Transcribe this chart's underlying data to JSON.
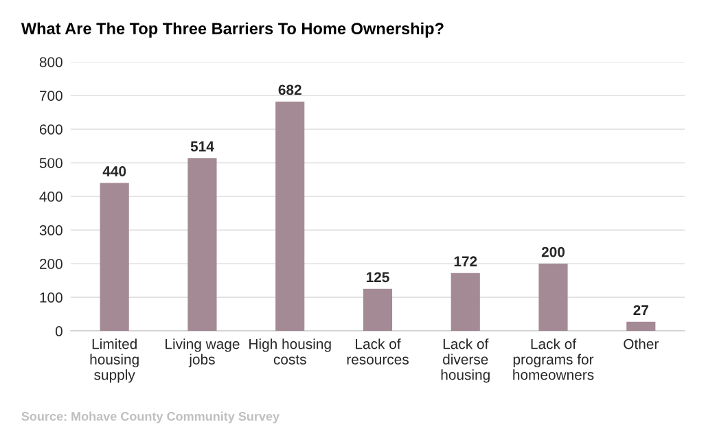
{
  "chart_data": {
    "type": "bar",
    "title": "What Are The Top Three Barriers To Home Ownership?",
    "categories": [
      "Limited\nhousing\nsupply",
      "Living wage\njobs",
      "High housing\ncosts",
      "Lack of\nresources",
      "Lack of\ndiverse\nhousing",
      "Lack of\nprograms for\nhomeowners",
      "Other"
    ],
    "values": [
      440,
      514,
      682,
      125,
      172,
      200,
      27
    ],
    "color": "#a38a95",
    "ylim": [
      0,
      800
    ],
    "yticks": [
      0,
      100,
      200,
      300,
      400,
      500,
      600,
      700,
      800
    ],
    "grid": "y",
    "data_labels": true,
    "annotations": [
      "Source: Mohave County Community Survey"
    ]
  }
}
